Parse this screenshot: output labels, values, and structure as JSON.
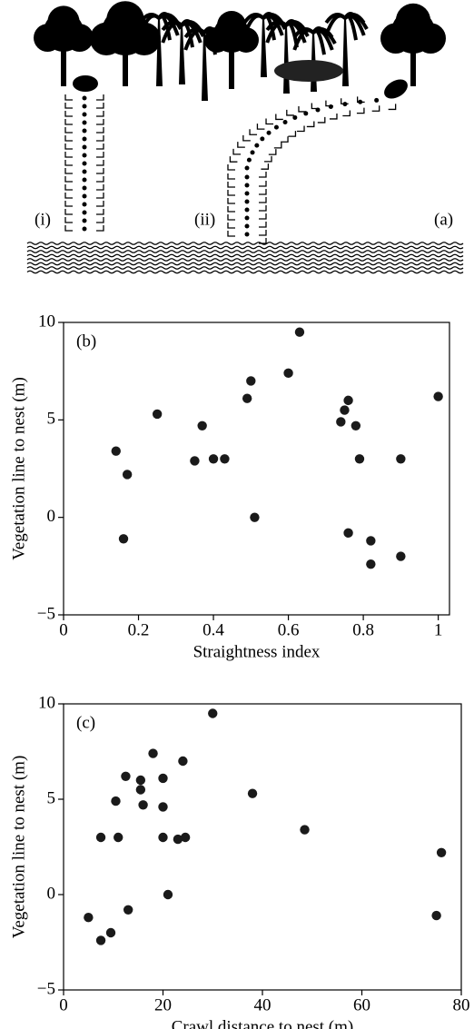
{
  "illustration": {
    "labels": [
      "(i)",
      "(ii)",
      "(a)"
    ]
  },
  "chart_data": [
    {
      "type": "scatter",
      "panel_label": "(b)",
      "x_label": "Straightness index",
      "y_label": "Vegetation line to nest (m)",
      "color": "#1a1a1a",
      "x": [
        0.14,
        0.16,
        0.17,
        0.25,
        0.35,
        0.37,
        0.4,
        0.43,
        0.49,
        0.5,
        0.51,
        0.6,
        0.63,
        0.74,
        0.75,
        0.76,
        0.76,
        0.78,
        0.79,
        0.82,
        0.82,
        0.9,
        0.9,
        1.0
      ],
      "values": [
        3.4,
        -1.1,
        2.2,
        5.3,
        2.9,
        4.7,
        3.0,
        3.0,
        6.1,
        7.0,
        0.0,
        7.4,
        9.5,
        4.9,
        5.5,
        6.0,
        -0.8,
        4.7,
        3.0,
        -1.2,
        -2.4,
        3.0,
        -2.0,
        6.2
      ],
      "xlim": [
        0,
        1.03
      ],
      "xticks": [
        0,
        0.2,
        0.4,
        0.6,
        0.8,
        1
      ],
      "ylim": [
        -5,
        10
      ],
      "yticks": [
        {
          "value": -5,
          "label": "−5"
        },
        0,
        5,
        10
      ]
    },
    {
      "type": "scatter",
      "panel_label": "(c)",
      "x_label": "Crawl distance to nest (m)",
      "y_label": "Vegetation line to nest (m)",
      "color": "#1a1a1a",
      "x": [
        5,
        7.5,
        7.5,
        9.5,
        10.5,
        11,
        12.5,
        13,
        15.5,
        15.5,
        16,
        18,
        20,
        20,
        20,
        21,
        23,
        24,
        24.5,
        30,
        38,
        48.5,
        75,
        76
      ],
      "values": [
        -1.2,
        -2.4,
        3.0,
        -2.0,
        4.9,
        3.0,
        6.2,
        -0.8,
        6.0,
        5.5,
        4.7,
        7.4,
        6.1,
        4.6,
        3.0,
        0.0,
        2.9,
        7.0,
        3.0,
        9.5,
        5.3,
        3.4,
        -1.1,
        2.2
      ],
      "xlim": [
        0,
        80
      ],
      "xticks": [
        0,
        20,
        40,
        60,
        80
      ],
      "ylim": [
        -5,
        10
      ],
      "yticks": [
        {
          "value": -5,
          "label": "−5"
        },
        0,
        5,
        10
      ]
    }
  ]
}
